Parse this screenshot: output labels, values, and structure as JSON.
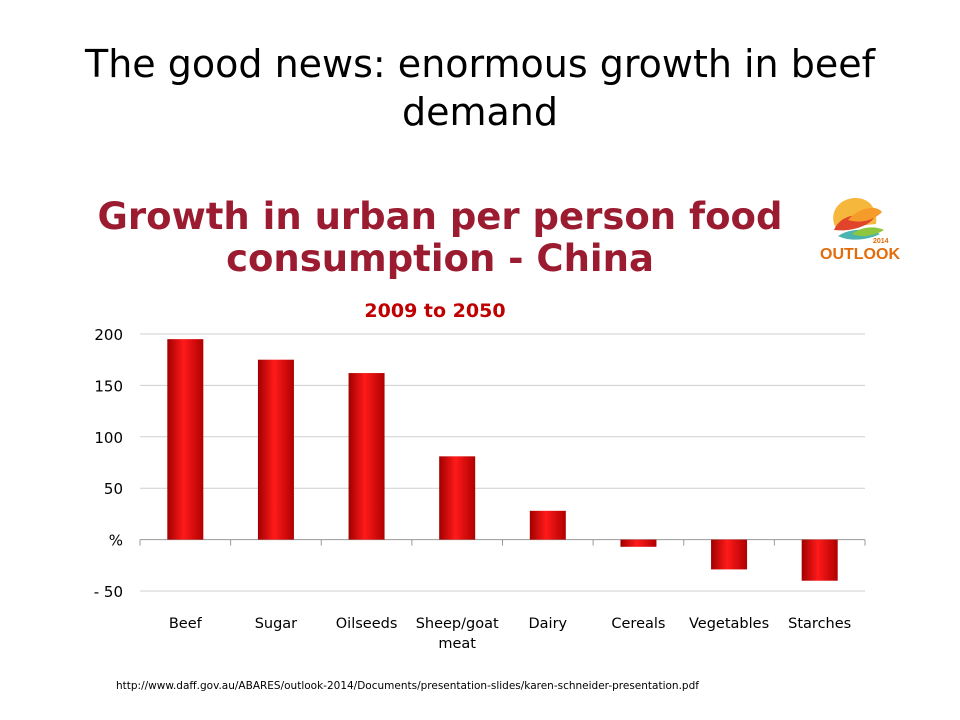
{
  "slide": {
    "title": "The good news: enormous growth in beef demand",
    "source_url": "http://www.daff.gov.au/ABARES/outlook-2014/Documents/presentation-slides/karen-schneider-presentation.pdf"
  },
  "logo": {
    "word": "OUTLOOK",
    "year": "2014"
  },
  "colors": {
    "title_red": "#9b1b30",
    "subtitle_red": "#c00000",
    "bar_red": "#e00000",
    "logo_orange": "#e36c0a"
  },
  "chart_data": {
    "type": "bar",
    "title": "Growth in urban per person food consumption - China",
    "subtitle": "2009 to 2050",
    "categories": [
      "Beef",
      "Sugar",
      "Oilseeds",
      "Sheep/goat meat",
      "Dairy",
      "Cereals",
      "Vegetables",
      "Starches"
    ],
    "values": [
      195,
      175,
      162,
      81,
      28,
      -7,
      -29,
      -40
    ],
    "ylim": [
      -50,
      200
    ],
    "yticks": [
      200,
      150,
      100,
      50,
      0,
      -50
    ],
    "ytick_labels": [
      "200",
      "150",
      "100",
      "50",
      "%",
      "- 50"
    ],
    "grid": true
  }
}
